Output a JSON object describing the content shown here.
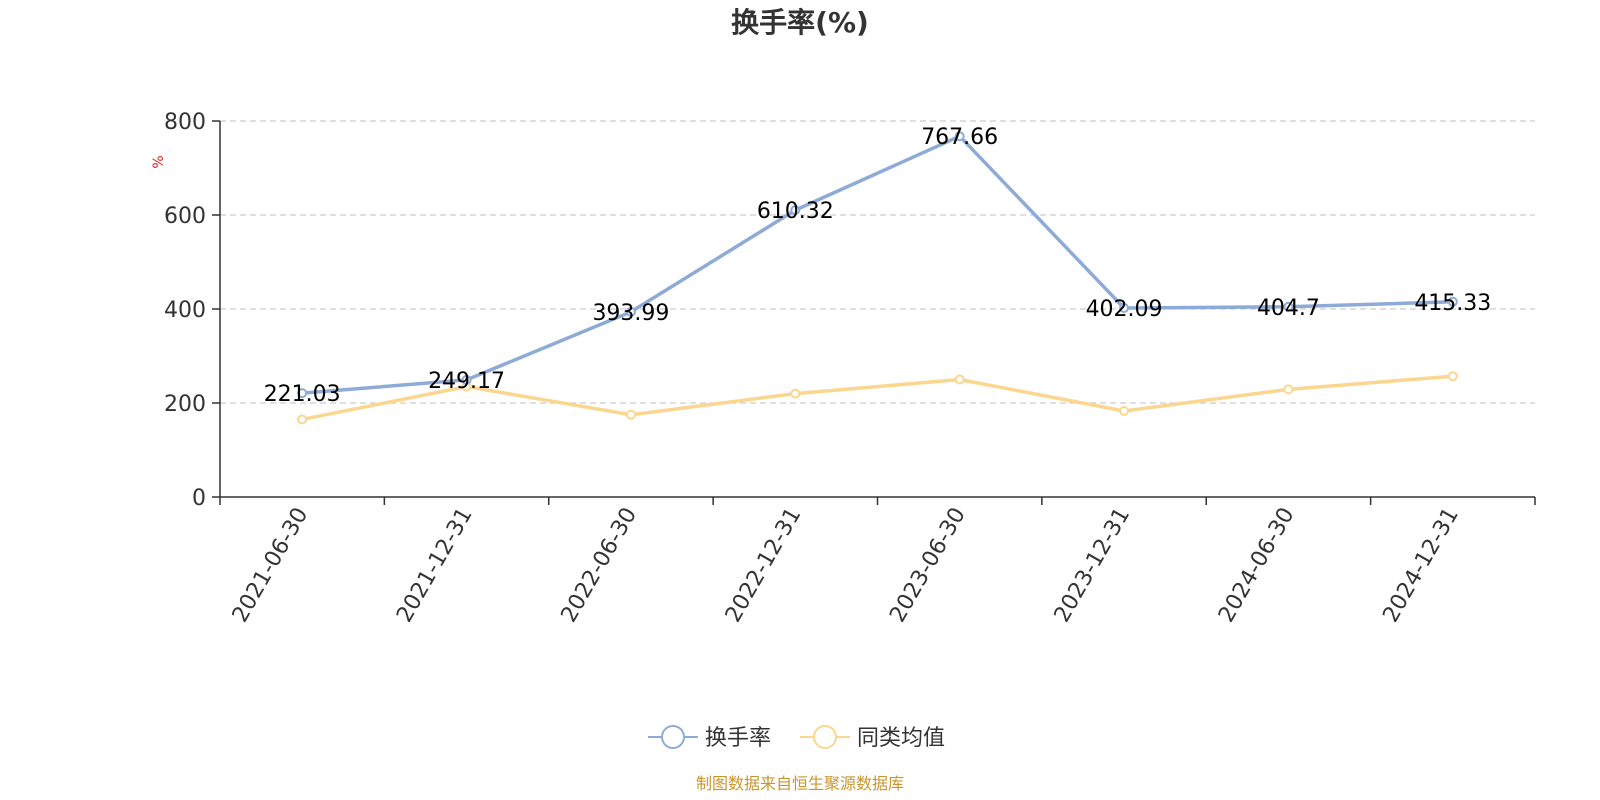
{
  "chart_data": {
    "type": "line",
    "title": "换手率(%)",
    "ylabel": "%",
    "ylim": [
      0,
      800
    ],
    "yticks": [
      0,
      200,
      400,
      600,
      800
    ],
    "grid": true,
    "legend_position": "bottom-center",
    "categories": [
      "2021-06-30",
      "2021-12-31",
      "2022-06-30",
      "2022-12-31",
      "2023-06-30",
      "2023-12-31",
      "2024-06-30",
      "2024-12-31"
    ],
    "series": [
      {
        "name": "换手率",
        "color": "#8eaad6",
        "values": [
          221.03,
          249.17,
          393.99,
          610.32,
          767.66,
          402.09,
          404.7,
          415.33
        ],
        "labels": [
          "221.03",
          "249.17",
          "393.99",
          "610.32",
          "767.66",
          "402.09",
          "404.7",
          "415.33"
        ]
      },
      {
        "name": "同类均值",
        "color": "#fbd68f",
        "values": [
          165,
          235,
          175,
          220,
          250,
          183,
          229,
          257
        ]
      }
    ],
    "source": "制图数据来自恒生聚源数据库",
    "source_color": "#c8962e",
    "unit_color": "#e02020"
  }
}
